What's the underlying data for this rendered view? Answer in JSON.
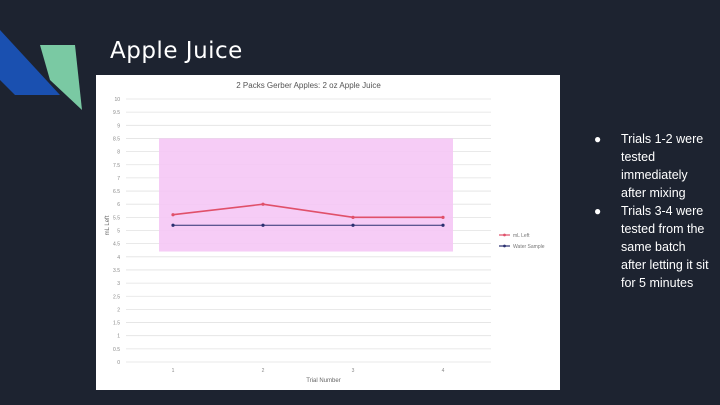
{
  "slide": {
    "title": "Apple Juice",
    "bullets": [
      "Trials 1-2 were tested immediately after mixing",
      "Trials 3-4 were tested from the same batch after letting it sit for 5 minutes"
    ]
  },
  "colors": {
    "background": "#1d2330",
    "accent_blue": "#1a50b0",
    "accent_green": "#7ac9a3",
    "highlight_pink": "#f5c6f5",
    "series_red": "#e0506a",
    "series_navy": "#2a3070"
  },
  "chart_data": {
    "type": "line",
    "title": "2 Packs Gerber Apples: 2 oz Apple Juice",
    "xlabel": "Trial Number",
    "ylabel": "mL Left",
    "categories": [
      "1",
      "2",
      "3",
      "4"
    ],
    "ylim": [
      0,
      10
    ],
    "yticks": [
      "0",
      "0.5",
      "1",
      "1.5",
      "2",
      "2.5",
      "3",
      "3.5",
      "4",
      "4.5",
      "5",
      "5.5",
      "6",
      "6.5",
      "7",
      "7.5",
      "8",
      "8.5",
      "9",
      "9.5",
      "10"
    ],
    "grid": true,
    "legend_position": "right",
    "series": [
      {
        "name": "mL Left",
        "values": [
          5.6,
          6.0,
          5.5,
          5.5
        ],
        "color": "#e0506a"
      },
      {
        "name": "Water Sample",
        "values": [
          5.2,
          5.2,
          5.2,
          5.2
        ],
        "color": "#2a3070"
      }
    ],
    "highlight_band": {
      "y_from": 4.2,
      "y_to": 8.5,
      "color": "#f5c6f5"
    }
  }
}
